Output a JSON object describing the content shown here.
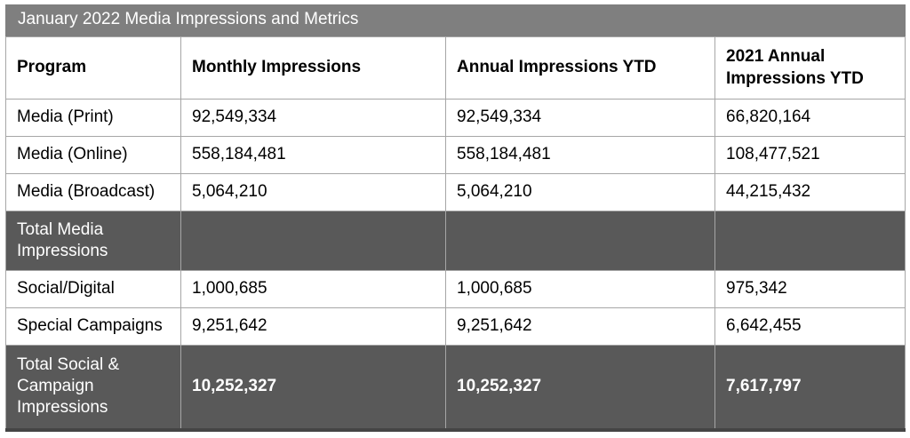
{
  "table": {
    "title": "January 2022 Media Impressions and Metrics",
    "columns": [
      "Program",
      "Monthly Impressions",
      "Annual Impressions YTD",
      "2021 Annual Impressions YTD"
    ],
    "rows": [
      {
        "style": "data",
        "cells": [
          "Media (Print)",
          "92,549,334",
          "92,549,334",
          "66,820,164"
        ]
      },
      {
        "style": "data",
        "cells": [
          "Media (Online)",
          "558,184,481",
          "558,184,481",
          "108,477,521"
        ]
      },
      {
        "style": "data",
        "cells": [
          "Media (Broadcast)",
          "5,064,210",
          "5,064,210",
          "44,215,432"
        ]
      },
      {
        "style": "total",
        "cells": [
          "Total Media Impressions",
          "",
          "",
          ""
        ]
      },
      {
        "style": "data",
        "cells": [
          "Social/Digital",
          "1,000,685",
          "1,000,685",
          "975,342"
        ]
      },
      {
        "style": "data",
        "cells": [
          "Special Campaigns",
          "9,251,642",
          "9,251,642",
          "6,642,455"
        ]
      },
      {
        "style": "total-bold",
        "cells": [
          "Total Social & Campaign Impressions",
          "10,252,327",
          "10,252,327",
          "7,617,797"
        ]
      }
    ],
    "colors": {
      "title_bar_bg": "#7F7F7F",
      "total_row_bg": "#595959",
      "cell_border": "#A6A6A6",
      "bottom_border": "#454545",
      "header_text": "#000000",
      "inverse_text": "#FFFFFF",
      "body_bg": "#FFFFFF"
    }
  }
}
